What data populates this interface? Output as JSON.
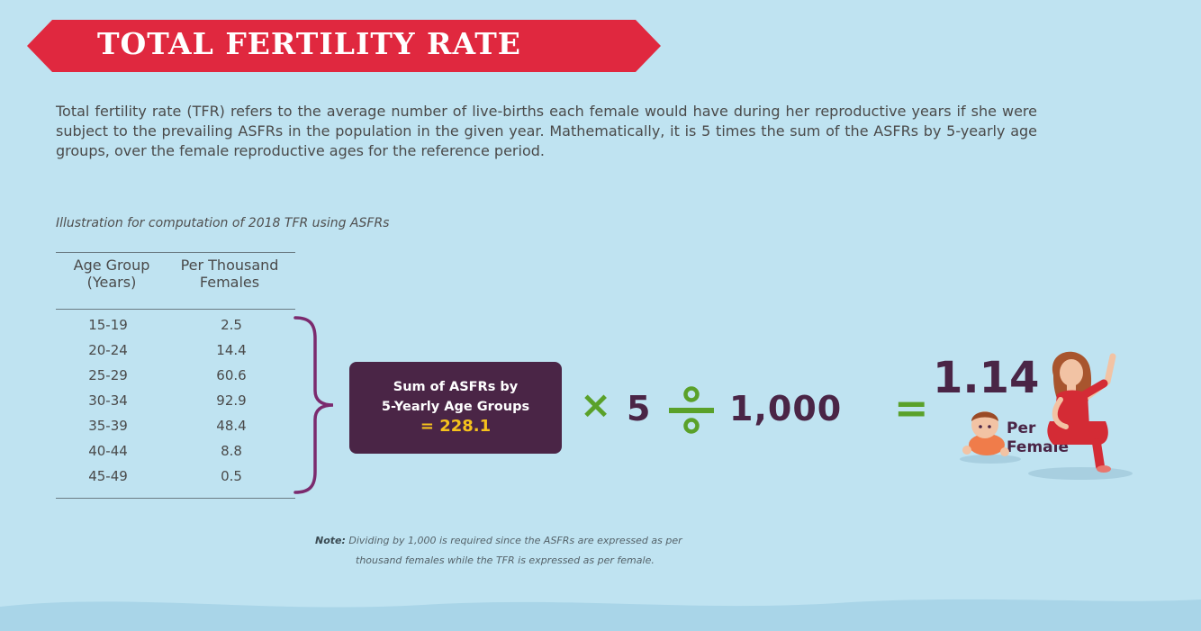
{
  "banner": {
    "title": "TOTAL FERTILITY RATE",
    "color": "#e0283f"
  },
  "definition": "Total fertility rate (TFR) refers to the average number of live-births each female would have during her reproductive years if she were subject to the prevailing ASFRs in the population in the given year. Mathematically, it is 5 times the sum of the ASFRs by 5-yearly age groups, over the female reproductive ages for the reference period.",
  "illustration_caption": "Illustration for computation of 2018 TFR using ASFRs",
  "table": {
    "headers": [
      "Age Group\n(Years)",
      "Per Thousand\nFemales"
    ],
    "rows": [
      [
        "15-19",
        "2.5"
      ],
      [
        "20-24",
        "14.4"
      ],
      [
        "25-29",
        "60.6"
      ],
      [
        "30-34",
        "92.9"
      ],
      [
        "35-39",
        "48.4"
      ],
      [
        "40-44",
        "8.8"
      ],
      [
        "45-49",
        "0.5"
      ]
    ]
  },
  "sum_box": {
    "line1": "Sum of ASFRs by",
    "line2": "5-Yearly Age Groups",
    "result": "= 228.1"
  },
  "formula": {
    "times": "×",
    "multiplier": "5",
    "divisor": "1,000",
    "equals": "=",
    "result": "1.14",
    "unit": "Per\nFemale"
  },
  "note": {
    "label": "Note:",
    "line1": "Dividing by 1,000 is required since the ASFRs are expressed as per",
    "line2": "thousand females while the TFR is expressed as per female."
  },
  "colors": {
    "background": "#bfe3f1",
    "accent_red": "#e0283f",
    "plum": "#4a2546",
    "green": "#5aa12a",
    "gold": "#f6c21c"
  }
}
